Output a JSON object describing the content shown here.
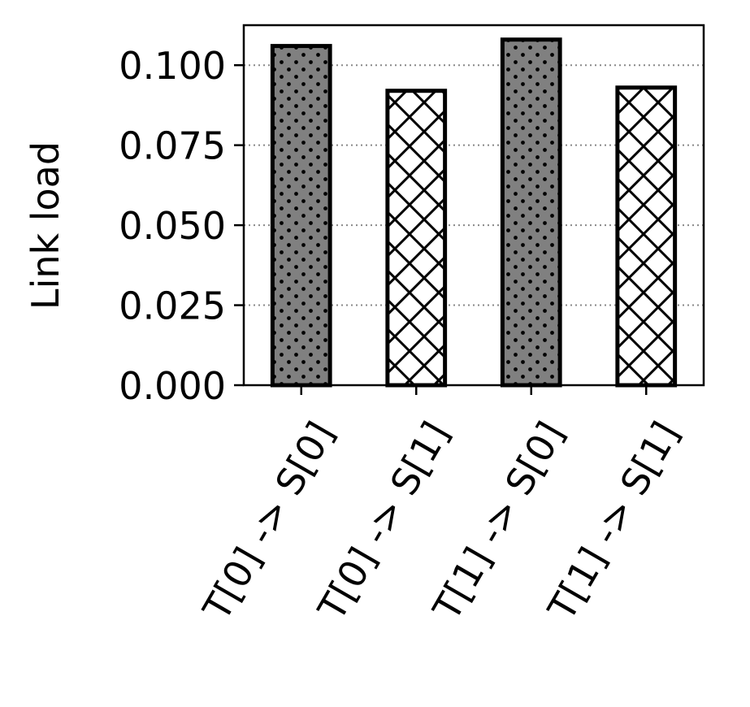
{
  "chart_data": {
    "type": "bar",
    "title": "",
    "xlabel": "",
    "ylabel": "Link load",
    "categories": [
      "T[0] -> S[0]",
      "T[0] -> S[1]",
      "T[1] -> S[0]",
      "T[1] -> S[1]"
    ],
    "values": [
      0.106,
      0.092,
      0.108,
      0.093
    ],
    "styles": [
      "dots",
      "crosshatch",
      "dots",
      "crosshatch"
    ],
    "ylim": [
      0,
      0.1125
    ],
    "yticks": [
      "0.000",
      "0.025",
      "0.050",
      "0.075",
      "0.100"
    ],
    "ytick_values": [
      0,
      0.025,
      0.05,
      0.075,
      0.1
    ],
    "grid": "y-dotted",
    "colors": {
      "dots_fill": "#808080",
      "crosshatch_fill": "#ffffff",
      "edge": "#000000",
      "grid": "#888888"
    }
  }
}
